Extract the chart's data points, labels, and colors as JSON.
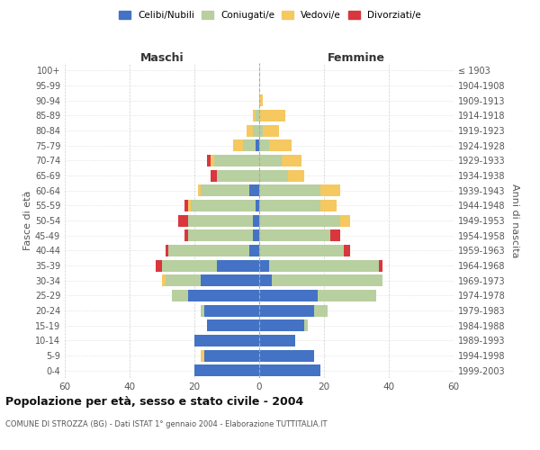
{
  "age_groups": [
    "0-4",
    "5-9",
    "10-14",
    "15-19",
    "20-24",
    "25-29",
    "30-34",
    "35-39",
    "40-44",
    "45-49",
    "50-54",
    "55-59",
    "60-64",
    "65-69",
    "70-74",
    "75-79",
    "80-84",
    "85-89",
    "90-94",
    "95-99",
    "100+"
  ],
  "birth_years": [
    "1999-2003",
    "1994-1998",
    "1989-1993",
    "1984-1988",
    "1979-1983",
    "1974-1978",
    "1969-1973",
    "1964-1968",
    "1959-1963",
    "1954-1958",
    "1949-1953",
    "1944-1948",
    "1939-1943",
    "1934-1938",
    "1929-1933",
    "1924-1928",
    "1919-1923",
    "1914-1918",
    "1909-1913",
    "1904-1908",
    "≤ 1903"
  ],
  "maschi": {
    "celibi": [
      20,
      17,
      20,
      16,
      17,
      22,
      18,
      13,
      3,
      2,
      2,
      1,
      3,
      0,
      0,
      1,
      0,
      0,
      0,
      0,
      0
    ],
    "coniugati": [
      0,
      0,
      0,
      0,
      1,
      5,
      11,
      17,
      25,
      20,
      20,
      20,
      15,
      13,
      14,
      4,
      2,
      1,
      0,
      0,
      0
    ],
    "vedovi": [
      0,
      1,
      0,
      0,
      0,
      0,
      1,
      0,
      0,
      0,
      0,
      1,
      1,
      0,
      1,
      3,
      2,
      1,
      0,
      0,
      0
    ],
    "divorziati": [
      0,
      0,
      0,
      0,
      0,
      0,
      0,
      2,
      1,
      1,
      3,
      1,
      0,
      2,
      1,
      0,
      0,
      0,
      0,
      0,
      0
    ]
  },
  "femmine": {
    "nubili": [
      19,
      17,
      11,
      14,
      17,
      18,
      4,
      3,
      0,
      0,
      0,
      0,
      0,
      0,
      0,
      0,
      0,
      0,
      0,
      0,
      0
    ],
    "coniugate": [
      0,
      0,
      0,
      1,
      4,
      18,
      34,
      34,
      26,
      22,
      25,
      19,
      19,
      9,
      7,
      3,
      1,
      0,
      0,
      0,
      0
    ],
    "vedove": [
      0,
      0,
      0,
      0,
      0,
      0,
      0,
      0,
      0,
      0,
      3,
      5,
      6,
      5,
      6,
      7,
      5,
      8,
      1,
      0,
      0
    ],
    "divorziate": [
      0,
      0,
      0,
      0,
      0,
      0,
      0,
      1,
      2,
      3,
      0,
      0,
      0,
      0,
      0,
      0,
      0,
      0,
      0,
      0,
      0
    ]
  },
  "colors": {
    "celibi": "#4472c4",
    "coniugati": "#b8cfa0",
    "vedovi": "#f5c860",
    "divorziati": "#d9363e"
  },
  "xlim": 60,
  "title": "Popolazione per età, sesso e stato civile - 2004",
  "subtitle": "COMUNE DI STROZZA (BG) - Dati ISTAT 1° gennaio 2004 - Elaborazione TUTTITALIA.IT",
  "ylabel_left": "Fasce di età",
  "ylabel_right": "Anni di nascita",
  "xlabel_left": "Maschi",
  "xlabel_right": "Femmine",
  "legend_labels": [
    "Celibi/Nubili",
    "Coniugati/e",
    "Vedovi/e",
    "Divorziati/e"
  ],
  "background_color": "#ffffff",
  "grid_color": "#cccccc"
}
